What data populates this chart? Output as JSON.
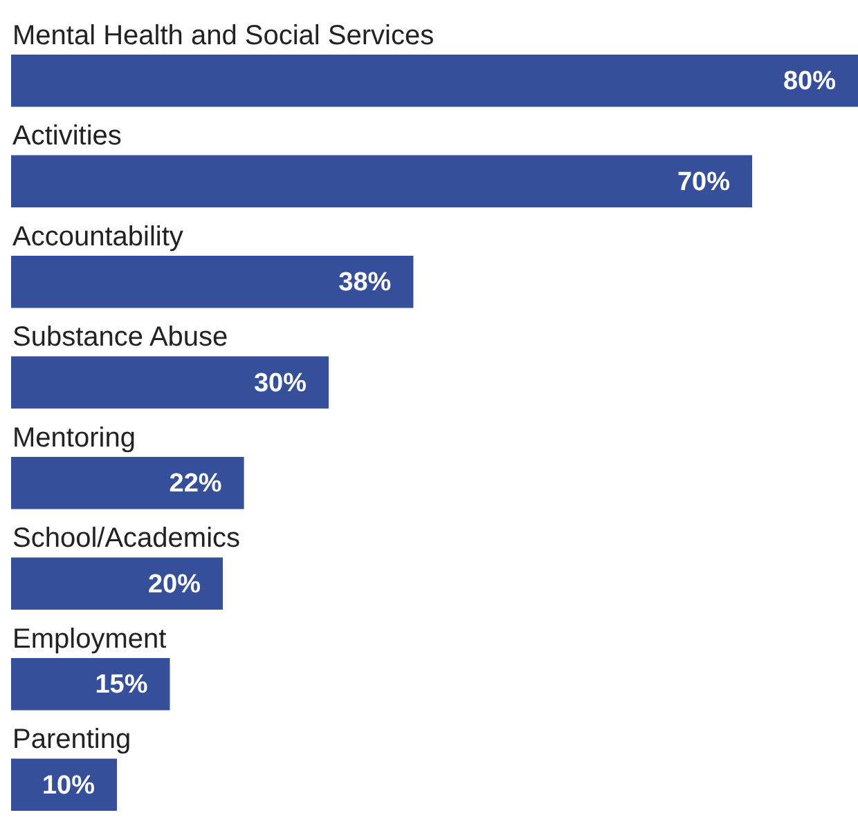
{
  "chart_data": {
    "type": "bar",
    "orientation": "horizontal",
    "categories": [
      "Mental Health and Social Services",
      "Activities",
      "Accountability",
      "Substance Abuse",
      "Mentoring",
      "School/Academics",
      "Employment",
      "Parenting"
    ],
    "values": [
      80,
      70,
      38,
      30,
      22,
      20,
      15,
      10
    ],
    "value_labels": [
      "80%",
      "70%",
      "38%",
      "30%",
      "22%",
      "20%",
      "15%",
      "10%"
    ],
    "color": "#354f9b",
    "xlim": [
      0,
      80
    ]
  }
}
